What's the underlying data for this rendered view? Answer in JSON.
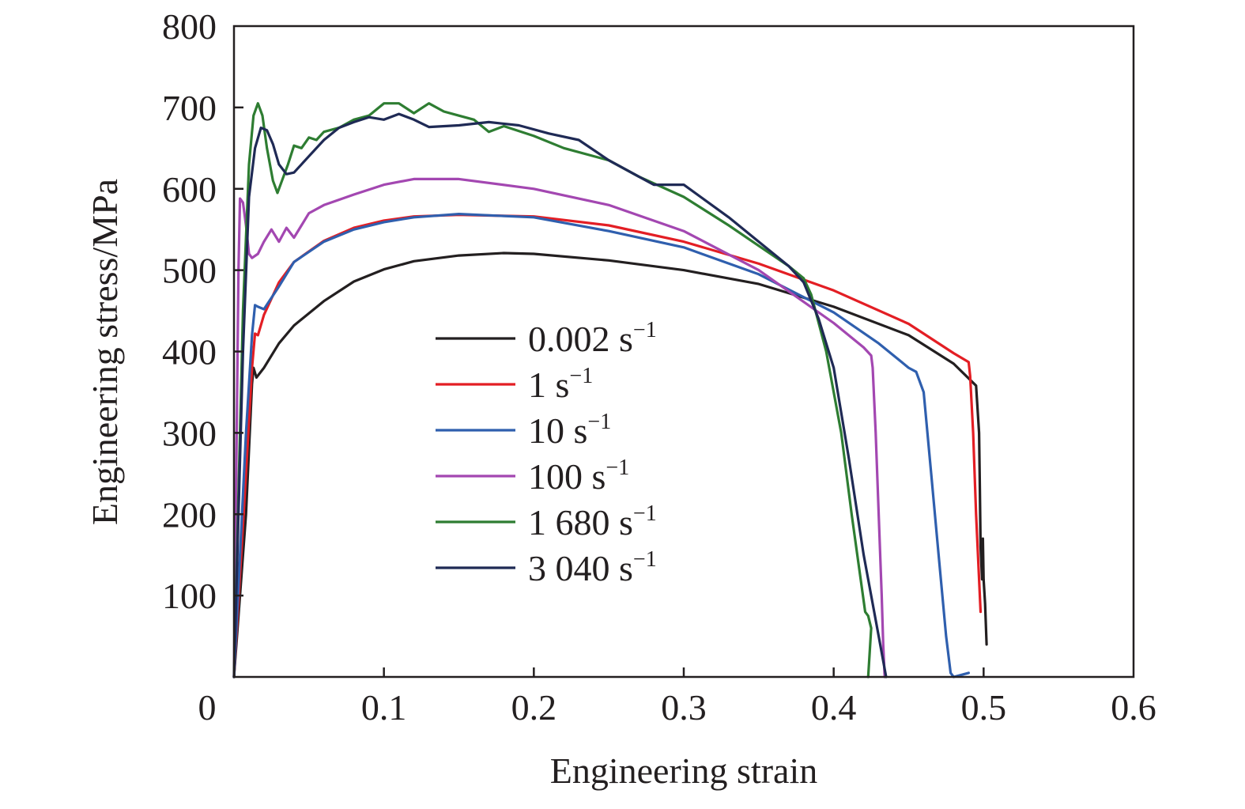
{
  "chart_data": {
    "type": "line",
    "title": "",
    "xlabel": "Engineering strain",
    "ylabel": "Engineering stress/MPa",
    "xlim": [
      0,
      0.6
    ],
    "ylim": [
      0,
      800
    ],
    "x_ticks": [
      0,
      0.1,
      0.2,
      0.3,
      0.4,
      0.5,
      0.6
    ],
    "x_tick_labels": [
      "0",
      "0.1",
      "0.2",
      "0.3",
      "0.4",
      "0.5",
      "0.6"
    ],
    "y_ticks": [
      100,
      200,
      300,
      400,
      500,
      600,
      700,
      800
    ],
    "y_tick_labels": [
      "100",
      "200",
      "300",
      "400",
      "500",
      "600",
      "700",
      "800"
    ],
    "grid": false,
    "legend_position": "center",
    "series": [
      {
        "name": "0.002 s",
        "unit_sup": "−1",
        "color": "#231f20",
        "points": [
          [
            0,
            0
          ],
          [
            0.008,
            200
          ],
          [
            0.012,
            360
          ],
          [
            0.013,
            380
          ],
          [
            0.015,
            368
          ],
          [
            0.02,
            380
          ],
          [
            0.03,
            410
          ],
          [
            0.04,
            432
          ],
          [
            0.06,
            462
          ],
          [
            0.08,
            486
          ],
          [
            0.1,
            501
          ],
          [
            0.12,
            511
          ],
          [
            0.15,
            518
          ],
          [
            0.18,
            521
          ],
          [
            0.2,
            520
          ],
          [
            0.25,
            512
          ],
          [
            0.3,
            500
          ],
          [
            0.35,
            483
          ],
          [
            0.4,
            455
          ],
          [
            0.45,
            420
          ],
          [
            0.48,
            385
          ],
          [
            0.495,
            358
          ],
          [
            0.497,
            300
          ],
          [
            0.4975,
            230
          ],
          [
            0.498,
            160
          ],
          [
            0.499,
            120
          ],
          [
            0.4995,
            170
          ],
          [
            0.5,
            120
          ],
          [
            0.501,
            90
          ],
          [
            0.502,
            40
          ]
        ]
      },
      {
        "name": "1 s",
        "unit_sup": "−1",
        "color": "#e31e24",
        "points": [
          [
            0,
            0
          ],
          [
            0.008,
            250
          ],
          [
            0.012,
            380
          ],
          [
            0.014,
            422
          ],
          [
            0.016,
            420
          ],
          [
            0.02,
            445
          ],
          [
            0.03,
            485
          ],
          [
            0.04,
            510
          ],
          [
            0.06,
            536
          ],
          [
            0.08,
            552
          ],
          [
            0.1,
            561
          ],
          [
            0.12,
            566
          ],
          [
            0.15,
            568
          ],
          [
            0.2,
            566
          ],
          [
            0.25,
            555
          ],
          [
            0.3,
            535
          ],
          [
            0.35,
            508
          ],
          [
            0.4,
            475
          ],
          [
            0.45,
            434
          ],
          [
            0.48,
            398
          ],
          [
            0.49,
            387
          ],
          [
            0.491,
            370
          ],
          [
            0.493,
            300
          ],
          [
            0.495,
            200
          ],
          [
            0.497,
            120
          ],
          [
            0.498,
            80
          ]
        ]
      },
      {
        "name": "10 s",
        "unit_sup": "−1",
        "color": "#2f5fae",
        "points": [
          [
            0,
            0
          ],
          [
            0.008,
            300
          ],
          [
            0.012,
            420
          ],
          [
            0.014,
            457
          ],
          [
            0.016,
            455
          ],
          [
            0.02,
            452
          ],
          [
            0.03,
            480
          ],
          [
            0.04,
            510
          ],
          [
            0.06,
            535
          ],
          [
            0.08,
            550
          ],
          [
            0.1,
            559
          ],
          [
            0.12,
            565
          ],
          [
            0.15,
            569
          ],
          [
            0.2,
            565
          ],
          [
            0.25,
            548
          ],
          [
            0.3,
            528
          ],
          [
            0.35,
            495
          ],
          [
            0.4,
            448
          ],
          [
            0.43,
            410
          ],
          [
            0.45,
            380
          ],
          [
            0.455,
            375
          ],
          [
            0.46,
            350
          ],
          [
            0.465,
            250
          ],
          [
            0.47,
            150
          ],
          [
            0.475,
            50
          ],
          [
            0.478,
            5
          ],
          [
            0.48,
            0
          ],
          [
            0.49,
            5
          ]
        ]
      },
      {
        "name": "100 s",
        "unit_sup": "−1",
        "color": "#a347b1",
        "points": [
          [
            0,
            0
          ],
          [
            0.003,
            500
          ],
          [
            0.004,
            588
          ],
          [
            0.006,
            583
          ],
          [
            0.008,
            555
          ],
          [
            0.01,
            520
          ],
          [
            0.012,
            515
          ],
          [
            0.016,
            520
          ],
          [
            0.02,
            535
          ],
          [
            0.025,
            550
          ],
          [
            0.03,
            535
          ],
          [
            0.035,
            552
          ],
          [
            0.04,
            540
          ],
          [
            0.045,
            555
          ],
          [
            0.05,
            570
          ],
          [
            0.06,
            580
          ],
          [
            0.08,
            593
          ],
          [
            0.1,
            605
          ],
          [
            0.12,
            612
          ],
          [
            0.15,
            612
          ],
          [
            0.2,
            600
          ],
          [
            0.25,
            580
          ],
          [
            0.3,
            548
          ],
          [
            0.35,
            500
          ],
          [
            0.4,
            435
          ],
          [
            0.42,
            405
          ],
          [
            0.425,
            395
          ],
          [
            0.426,
            380
          ],
          [
            0.428,
            300
          ],
          [
            0.43,
            200
          ],
          [
            0.432,
            100
          ],
          [
            0.433,
            40
          ],
          [
            0.434,
            0
          ]
        ]
      },
      {
        "name": "1 680 s",
        "unit_sup": "−1",
        "color": "#2e7d32",
        "points": [
          [
            0,
            0
          ],
          [
            0.006,
            450
          ],
          [
            0.01,
            630
          ],
          [
            0.013,
            690
          ],
          [
            0.016,
            705
          ],
          [
            0.019,
            690
          ],
          [
            0.022,
            650
          ],
          [
            0.026,
            610
          ],
          [
            0.029,
            595
          ],
          [
            0.032,
            610
          ],
          [
            0.036,
            630
          ],
          [
            0.04,
            653
          ],
          [
            0.045,
            650
          ],
          [
            0.05,
            663
          ],
          [
            0.055,
            660
          ],
          [
            0.06,
            670
          ],
          [
            0.07,
            675
          ],
          [
            0.08,
            685
          ],
          [
            0.09,
            690
          ],
          [
            0.1,
            705
          ],
          [
            0.11,
            705
          ],
          [
            0.12,
            693
          ],
          [
            0.13,
            705
          ],
          [
            0.14,
            695
          ],
          [
            0.15,
            690
          ],
          [
            0.16,
            685
          ],
          [
            0.17,
            670
          ],
          [
            0.18,
            677
          ],
          [
            0.2,
            665
          ],
          [
            0.22,
            650
          ],
          [
            0.25,
            635
          ],
          [
            0.27,
            615
          ],
          [
            0.3,
            590
          ],
          [
            0.33,
            555
          ],
          [
            0.35,
            530
          ],
          [
            0.37,
            505
          ],
          [
            0.38,
            490
          ],
          [
            0.385,
            470
          ],
          [
            0.395,
            400
          ],
          [
            0.405,
            300
          ],
          [
            0.412,
            200
          ],
          [
            0.418,
            120
          ],
          [
            0.421,
            80
          ],
          [
            0.423,
            75
          ],
          [
            0.425,
            60
          ],
          [
            0.423,
            0
          ]
        ]
      },
      {
        "name": "3 040 s",
        "unit_sup": "−1",
        "color": "#1f2a55",
        "points": [
          [
            0,
            0
          ],
          [
            0.006,
            400
          ],
          [
            0.01,
            590
          ],
          [
            0.014,
            650
          ],
          [
            0.018,
            675
          ],
          [
            0.022,
            672
          ],
          [
            0.026,
            655
          ],
          [
            0.03,
            630
          ],
          [
            0.035,
            618
          ],
          [
            0.04,
            620
          ],
          [
            0.05,
            640
          ],
          [
            0.06,
            660
          ],
          [
            0.07,
            675
          ],
          [
            0.08,
            682
          ],
          [
            0.09,
            688
          ],
          [
            0.1,
            685
          ],
          [
            0.11,
            692
          ],
          [
            0.12,
            685
          ],
          [
            0.13,
            676
          ],
          [
            0.15,
            678
          ],
          [
            0.17,
            682
          ],
          [
            0.19,
            678
          ],
          [
            0.21,
            668
          ],
          [
            0.23,
            660
          ],
          [
            0.25,
            635
          ],
          [
            0.27,
            615
          ],
          [
            0.28,
            605
          ],
          [
            0.3,
            605
          ],
          [
            0.33,
            565
          ],
          [
            0.35,
            535
          ],
          [
            0.37,
            505
          ],
          [
            0.38,
            485
          ],
          [
            0.39,
            440
          ],
          [
            0.4,
            380
          ],
          [
            0.41,
            270
          ],
          [
            0.42,
            150
          ],
          [
            0.43,
            50
          ],
          [
            0.435,
            0
          ]
        ]
      }
    ]
  }
}
